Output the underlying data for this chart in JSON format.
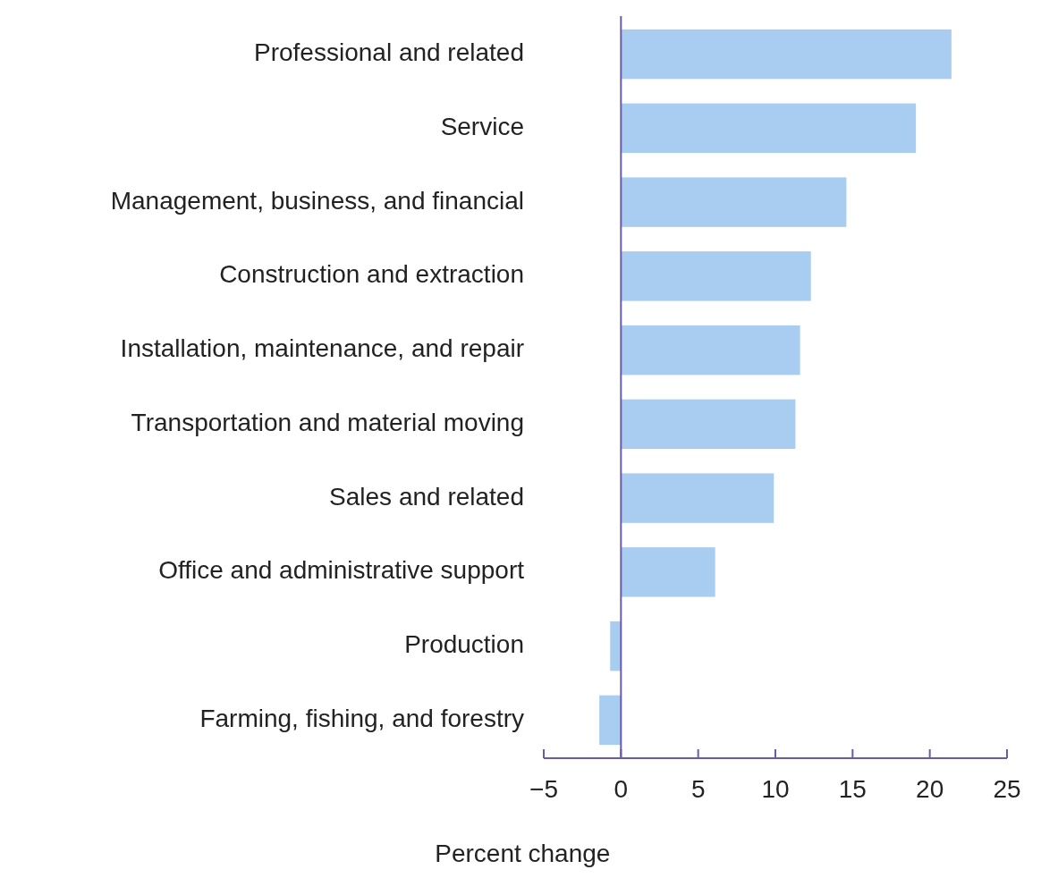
{
  "chart_data": {
    "type": "bar",
    "orientation": "horizontal",
    "xlabel": "Percent change",
    "categories": [
      "Professional and related",
      "Service",
      "Management, business, and financial",
      "Construction and extraction",
      "Installation, maintenance, and repair",
      "Transportation and material moving",
      "Sales and related",
      "Office and administrative support",
      "Production",
      "Farming, fishing, and forestry"
    ],
    "values": [
      21.4,
      19.1,
      14.6,
      12.3,
      11.6,
      11.3,
      9.9,
      6.1,
      -0.7,
      -1.4
    ],
    "color": "#a9cdf0",
    "xlim": [
      -5,
      25
    ],
    "xticks": [
      {
        "value": -5,
        "label": "−5"
      },
      0,
      5,
      10,
      15,
      20,
      25
    ],
    "ref_lines": [
      {
        "axis": "x",
        "value": 0,
        "color": "#6b5ba6"
      }
    ],
    "grid": false
  }
}
